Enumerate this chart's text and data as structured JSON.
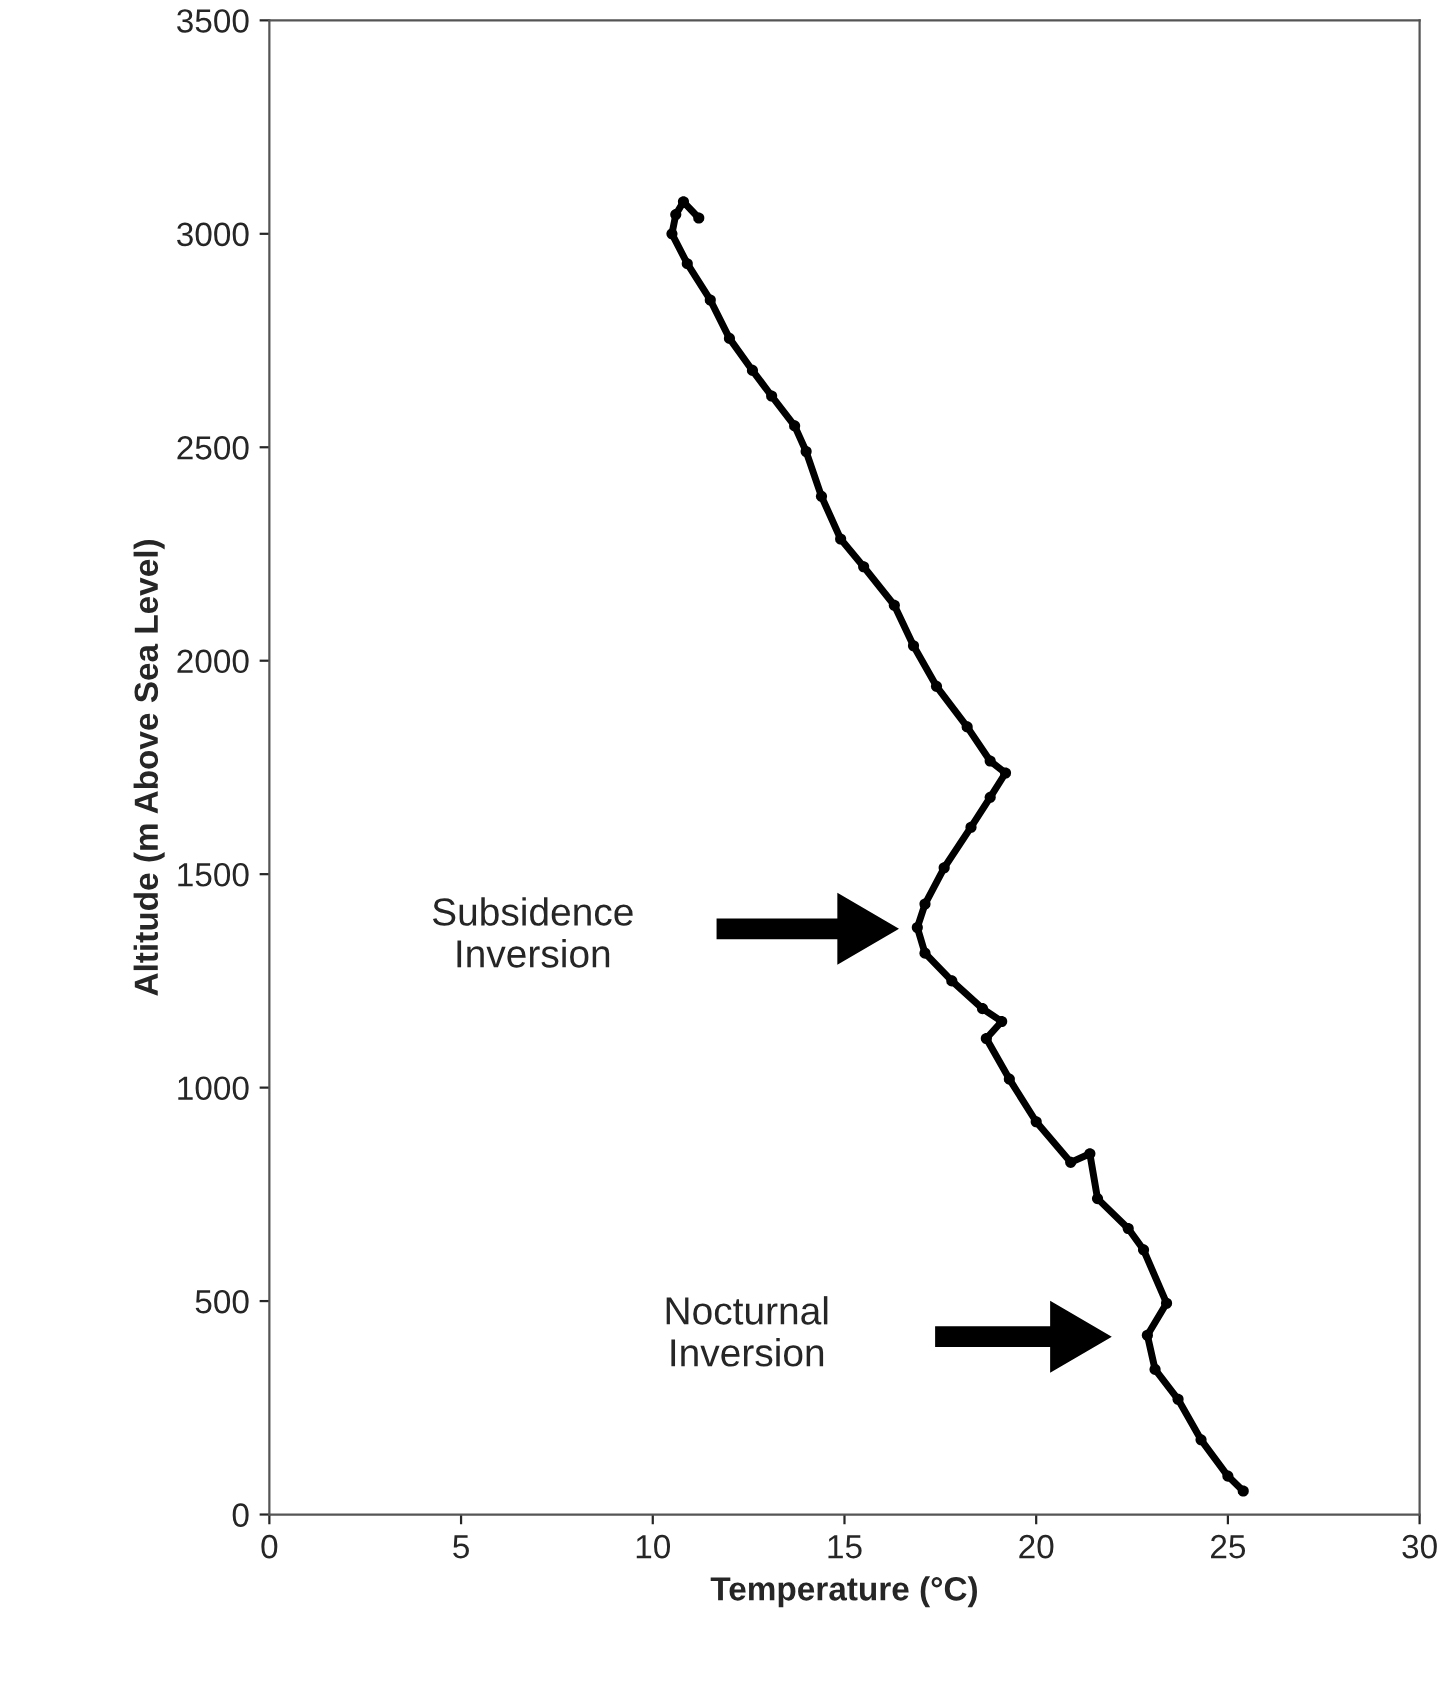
{
  "chart_data": {
    "type": "line",
    "xlabel": "Temperature (°C)",
    "ylabel": "Altitude (m Above Sea Level)",
    "xlim": [
      0,
      30
    ],
    "xticks": [
      0,
      5,
      10,
      15,
      20,
      25,
      30
    ],
    "ylim": [
      0,
      3500
    ],
    "yticks": [
      0,
      500,
      1000,
      1500,
      2000,
      2500,
      3000,
      3500
    ],
    "grid": false,
    "marker": "circle",
    "line_style": "solid",
    "series": [
      {
        "color": "#000000",
        "x": [
          11.2,
          10.8,
          10.6,
          10.5,
          10.9,
          11.5,
          12.0,
          12.6,
          13.1,
          13.7,
          14.0,
          14.4,
          14.9,
          15.5,
          16.3,
          16.8,
          17.4,
          18.2,
          18.8,
          19.2,
          18.8,
          18.3,
          17.6,
          17.1,
          16.9,
          17.1,
          17.8,
          18.6,
          19.1,
          18.7,
          19.3,
          20.0,
          20.9,
          21.4,
          21.6,
          22.4,
          22.8,
          23.4,
          22.9,
          23.1,
          23.7,
          24.3,
          25.0,
          25.4
        ],
        "values": [
          3037,
          3075,
          3045,
          3000,
          2930,
          2845,
          2755,
          2680,
          2620,
          2550,
          2490,
          2385,
          2285,
          2220,
          2130,
          2035,
          1940,
          1845,
          1765,
          1737,
          1680,
          1610,
          1515,
          1430,
          1375,
          1315,
          1250,
          1185,
          1155,
          1115,
          1020,
          920,
          825,
          845,
          740,
          670,
          620,
          495,
          420,
          340,
          270,
          175,
          90,
          55
        ]
      }
    ],
    "annotations": [
      "Subsidence\nInversion",
      "Nocturnal\nInversion"
    ]
  }
}
